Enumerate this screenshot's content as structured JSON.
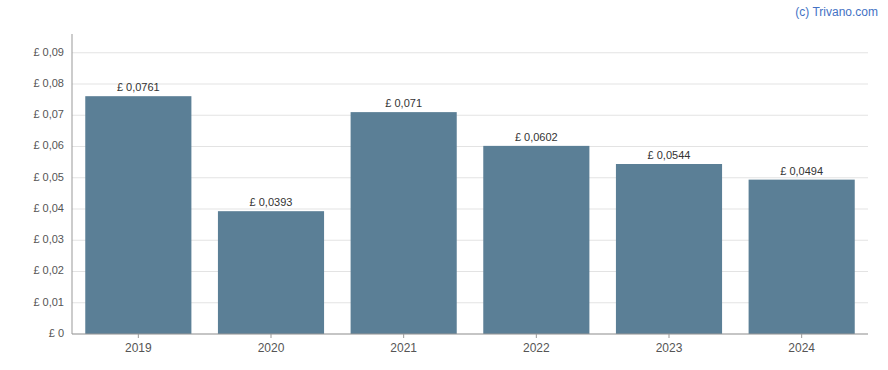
{
  "chart_data": {
    "type": "bar",
    "categories": [
      "2019",
      "2020",
      "2021",
      "2022",
      "2023",
      "2024"
    ],
    "values": [
      0.0761,
      0.0393,
      0.071,
      0.0602,
      0.0544,
      0.0494
    ],
    "value_labels": [
      "£ 0,0761",
      "£ 0,0393",
      "£ 0,071",
      "£ 0,0602",
      "£ 0,0544",
      "£ 0,0494"
    ],
    "data_labels": true,
    "color": "#5b7f96",
    "ylim": [
      0,
      0.096
    ],
    "yticks": [
      {
        "value": 0,
        "label": "£ 0"
      },
      {
        "value": 0.01,
        "label": "£ 0,01"
      },
      {
        "value": 0.02,
        "label": "£ 0,02"
      },
      {
        "value": 0.03,
        "label": "£ 0,03"
      },
      {
        "value": 0.04,
        "label": "£ 0,04"
      },
      {
        "value": 0.05,
        "label": "£ 0,05"
      },
      {
        "value": 0.06,
        "label": "£ 0,06"
      },
      {
        "value": 0.07,
        "label": "£ 0,07"
      },
      {
        "value": 0.08,
        "label": "£ 0,08"
      },
      {
        "value": 0.09,
        "label": "£ 0,09"
      }
    ],
    "grid": true,
    "annotations": [
      "(c) Trivano.com"
    ]
  }
}
